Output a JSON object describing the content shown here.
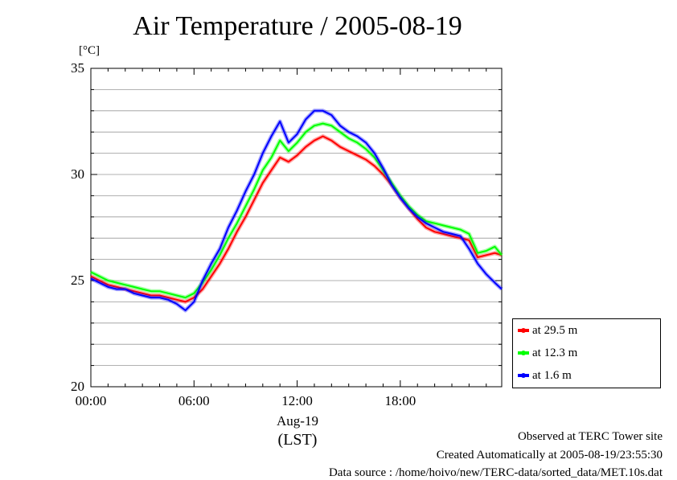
{
  "chart_data": {
    "type": "line",
    "title": "Air Temperature / 2005-08-19",
    "ylabel": "[°C]",
    "xlabel": "(LST)",
    "date_label": "Aug-19",
    "ylim": [
      20,
      35
    ],
    "xlim": [
      0,
      23.9
    ],
    "y_ticks": [
      "20",
      "25",
      "30",
      "35"
    ],
    "x_ticks": [
      {
        "value": 0,
        "label": "00:00"
      },
      {
        "value": 6,
        "label": "06:00"
      },
      {
        "value": 12,
        "label": "12:00"
      },
      {
        "value": 18,
        "label": "18:00"
      }
    ],
    "grid": true,
    "legend_position": "bottom-right, outside plot",
    "x": [
      0,
      0.5,
      1,
      1.5,
      2,
      2.5,
      3,
      3.5,
      4,
      4.5,
      5,
      5.5,
      6,
      6.5,
      7,
      7.5,
      8,
      8.5,
      9,
      9.5,
      10,
      10.5,
      11,
      11.5,
      12,
      12.5,
      13,
      13.5,
      14,
      14.5,
      15,
      15.5,
      16,
      16.5,
      17,
      17.5,
      18,
      18.5,
      19,
      19.5,
      20,
      20.5,
      21,
      21.5,
      22,
      22.5,
      23,
      23.5,
      23.9
    ],
    "series": [
      {
        "name": "at 29.5 m",
        "color": "#ff0000",
        "values": [
          25.2,
          25.0,
          24.8,
          24.7,
          24.6,
          24.5,
          24.4,
          24.3,
          24.3,
          24.2,
          24.1,
          24.0,
          24.2,
          24.6,
          25.2,
          25.8,
          26.5,
          27.3,
          28.0,
          28.8,
          29.6,
          30.2,
          30.8,
          30.6,
          30.9,
          31.3,
          31.6,
          31.8,
          31.6,
          31.3,
          31.1,
          30.9,
          30.7,
          30.4,
          30.0,
          29.5,
          28.9,
          28.4,
          27.9,
          27.5,
          27.3,
          27.2,
          27.1,
          27.0,
          26.9,
          26.1,
          26.2,
          26.3,
          26.2
        ]
      },
      {
        "name": "at 12.3 m",
        "color": "#00ff00",
        "values": [
          25.4,
          25.2,
          25.0,
          24.9,
          24.8,
          24.7,
          24.6,
          24.5,
          24.5,
          24.4,
          24.3,
          24.2,
          24.4,
          24.9,
          25.5,
          26.2,
          27.0,
          27.7,
          28.5,
          29.3,
          30.2,
          30.8,
          31.6,
          31.1,
          31.5,
          32.0,
          32.3,
          32.4,
          32.3,
          32.0,
          31.7,
          31.5,
          31.2,
          30.8,
          30.2,
          29.6,
          29.0,
          28.5,
          28.1,
          27.8,
          27.7,
          27.6,
          27.5,
          27.4,
          27.2,
          26.3,
          26.4,
          26.6,
          26.2
        ]
      },
      {
        "name": "at 1.6 m",
        "color": "#0000ff",
        "values": [
          25.1,
          24.9,
          24.7,
          24.6,
          24.6,
          24.4,
          24.3,
          24.2,
          24.2,
          24.1,
          23.9,
          23.6,
          24.0,
          25.0,
          25.8,
          26.5,
          27.5,
          28.3,
          29.2,
          30.0,
          31.0,
          31.8,
          32.5,
          31.5,
          31.9,
          32.6,
          33.0,
          33.0,
          32.8,
          32.3,
          32.0,
          31.8,
          31.5,
          31.0,
          30.3,
          29.5,
          28.9,
          28.4,
          28.0,
          27.7,
          27.5,
          27.3,
          27.2,
          27.1,
          26.5,
          25.8,
          25.3,
          24.9,
          24.6
        ]
      }
    ]
  },
  "footer": {
    "line1": "Observed at TERC Tower site",
    "line2": "Created Automatically at 2005-08-19/23:55:30",
    "line3": "Data source : /home/hoivo/new/TERC-data/sorted_data/MET.10s.dat"
  }
}
